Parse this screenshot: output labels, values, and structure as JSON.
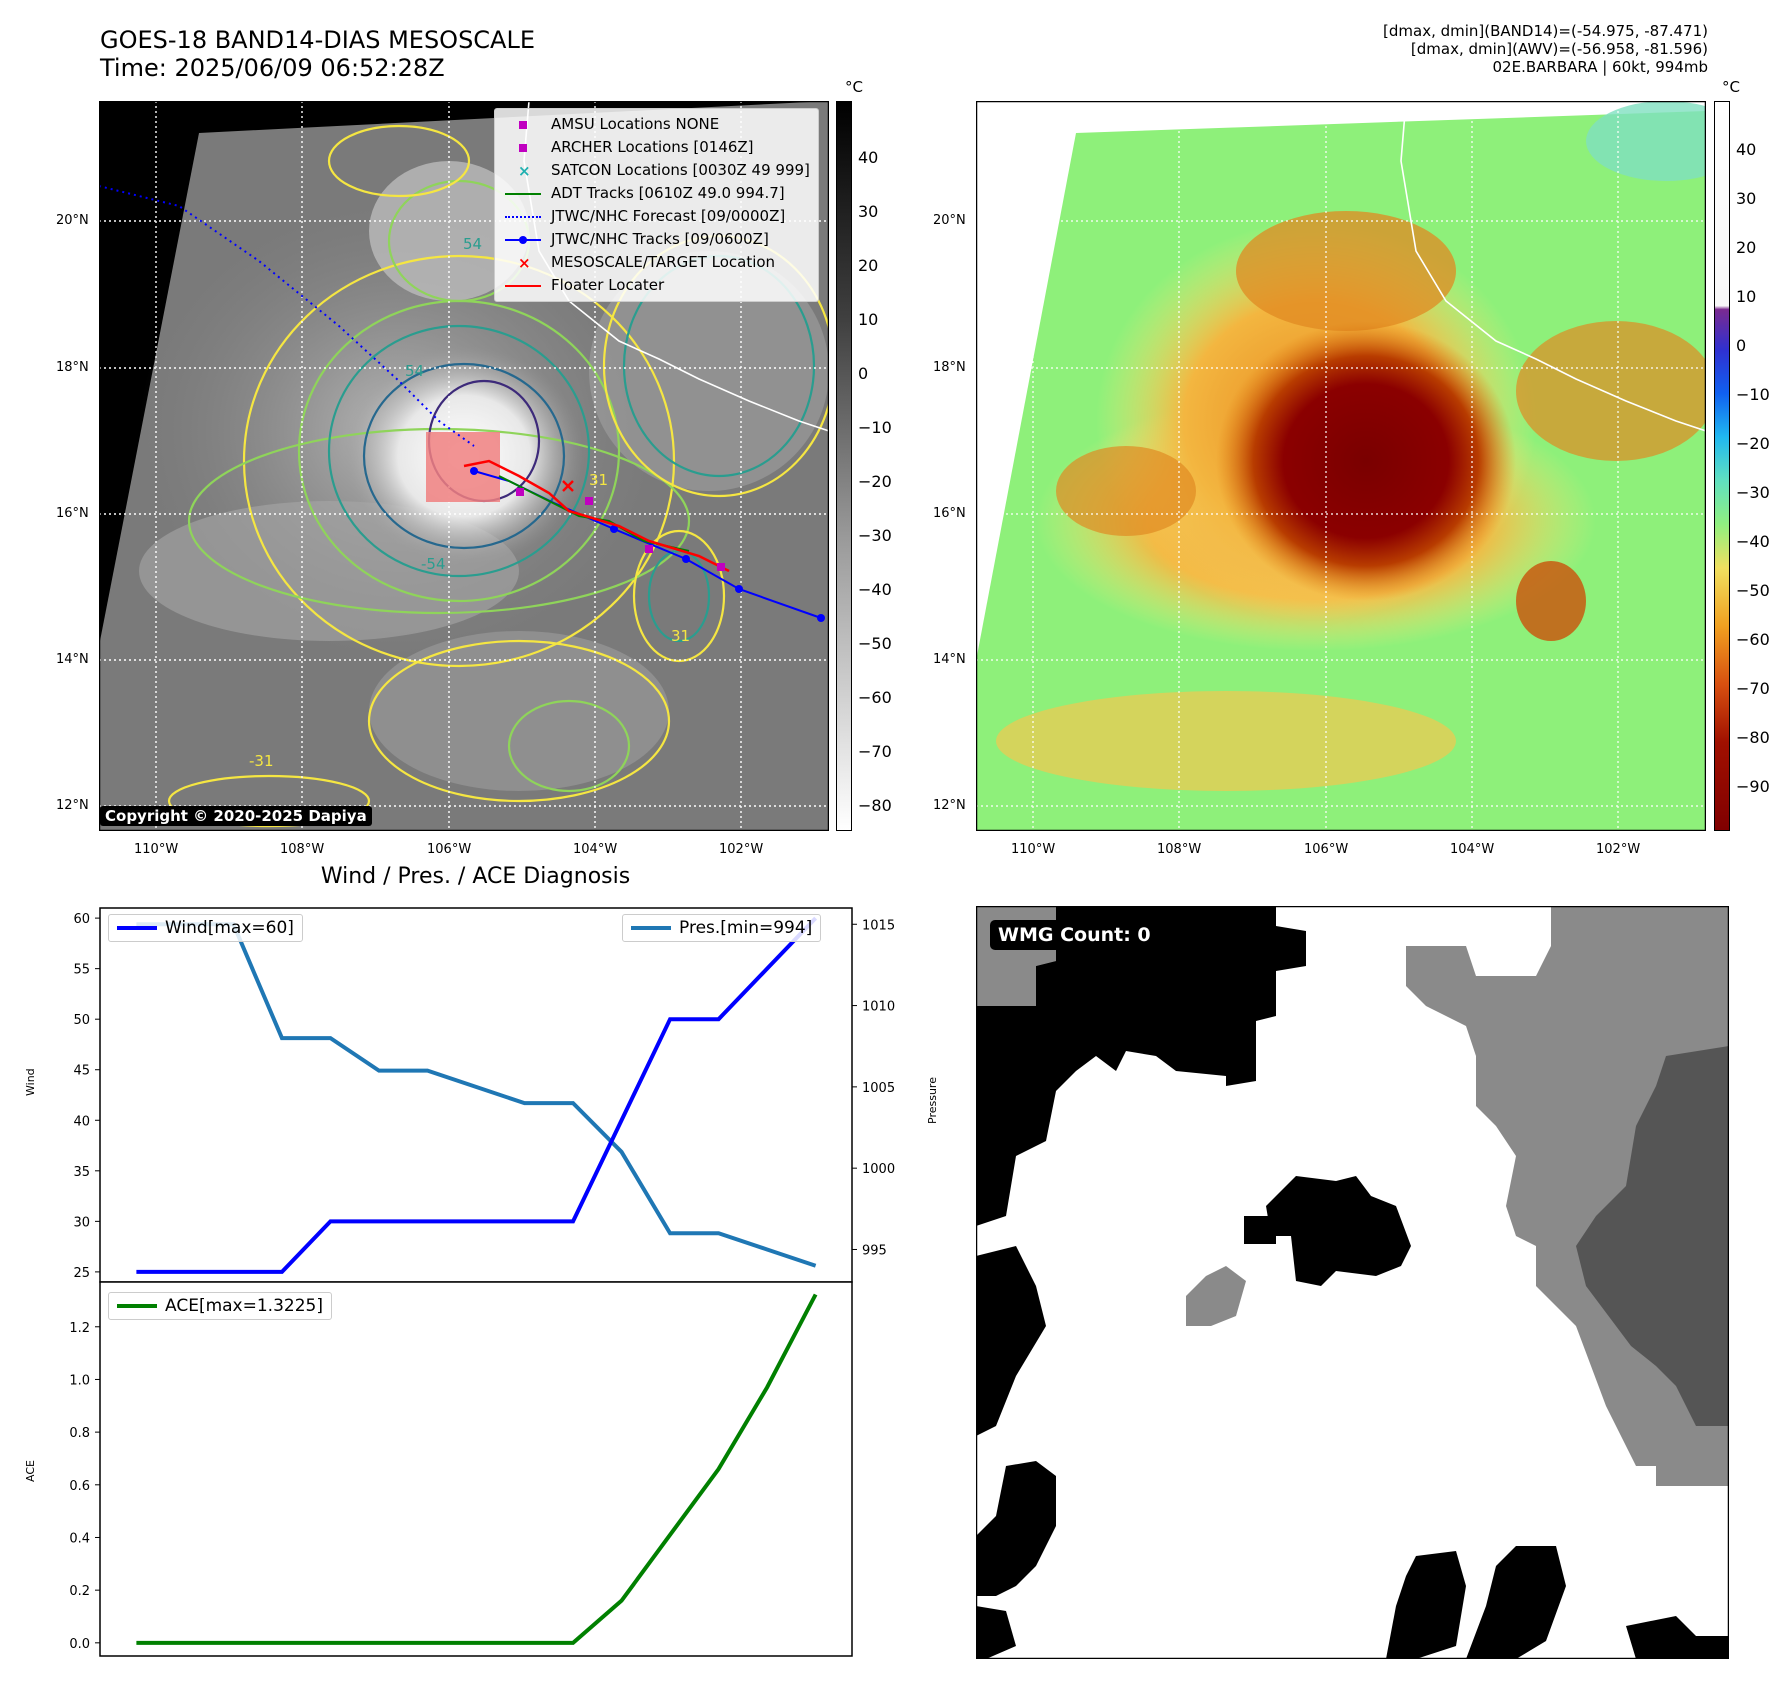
{
  "header": {
    "title_line1": "GOES-18 BAND14-DIAS MESOSCALE",
    "title_line2": "Time: 2025/06/09 06:52:28Z",
    "info_line1": "[dmax, dmin](BAND14)=(-54.975, -87.471)",
    "info_line2": "[dmax, dmin](AWV)=(-56.958, -81.596)",
    "info_line3": "02E.BARBARA | 60kt, 994mb"
  },
  "map": {
    "lat_labels": [
      "20°N",
      "18°N",
      "16°N",
      "14°N",
      "12°N"
    ],
    "lon_labels": [
      "110°W",
      "108°W",
      "106°W",
      "104°W",
      "102°W"
    ],
    "copyright": "Copyright © 2020-2025 Dapiya",
    "contour_labels": [
      "54",
      "54",
      "31",
      "31",
      "-54",
      "-31"
    ],
    "legend": [
      {
        "label": "AMSU Locations NONE",
        "color": "#c000c0",
        "marker": "square"
      },
      {
        "label": "ARCHER Locations [0146Z]",
        "color": "#c000c0",
        "marker": "square"
      },
      {
        "label": "SATCON Locations [0030Z 49 999]",
        "color": "#20b0b0",
        "marker": "x"
      },
      {
        "label": "ADT Tracks [0610Z 49.0 994.7]",
        "color": "#008000",
        "marker": "line"
      },
      {
        "label": "JTWC/NHC Forecast [09/0000Z]",
        "color": "#0000ff",
        "marker": "dotted"
      },
      {
        "label": "JTWC/NHC Tracks [09/0600Z]",
        "color": "#0000ff",
        "marker": "line-dot"
      },
      {
        "label": "MESOSCALE/TARGET Location",
        "color": "#ff0000",
        "marker": "x"
      },
      {
        "label": "Floater Locater",
        "color": "#ff0000",
        "marker": "line"
      }
    ]
  },
  "colorbar_gray": {
    "unit": "°C",
    "ticks": [
      "40",
      "30",
      "20",
      "10",
      "0",
      "−10",
      "−20",
      "−30",
      "−40",
      "−50",
      "−60",
      "−70",
      "−80"
    ]
  },
  "colorbar_color": {
    "unit": "°C",
    "ticks": [
      "40",
      "30",
      "20",
      "10",
      "0",
      "−10",
      "−20",
      "−30",
      "−40",
      "−50",
      "−60",
      "−70",
      "−80",
      "−90"
    ]
  },
  "diagnosis": {
    "title": "Wind / Pres. / ACE Diagnosis",
    "wind_label": "Wind",
    "pressure_label": "Pressure",
    "ace_label": "ACE",
    "legend_wind": "Wind[max=60]",
    "legend_pres": "Pres.[min=994]",
    "legend_ace": "ACE[max=1.3225]",
    "wind_color": "#0000ff",
    "pres_color": "#1f77b4",
    "ace_color": "#008000"
  },
  "wmg": {
    "badge": "WMG Count: 0"
  },
  "chart_data": [
    {
      "type": "line",
      "name": "wind-pressure",
      "x": [
        0,
        1,
        2,
        3,
        4,
        5,
        6,
        7,
        8,
        9,
        10,
        11,
        12,
        13,
        14
      ],
      "series": [
        {
          "name": "Wind[max=60]",
          "axis": "left",
          "values": [
            25,
            25,
            25,
            25,
            30,
            30,
            30,
            30,
            30,
            30,
            40,
            50,
            50,
            55,
            60
          ]
        },
        {
          "name": "Pres.[min=994]",
          "axis": "right",
          "values": [
            1015,
            1015,
            1015,
            1008,
            1008,
            1006,
            1006,
            1005,
            1004,
            1004,
            1001,
            996,
            996,
            995,
            994
          ]
        }
      ],
      "ylabel": "Wind",
      "ylim": [
        24,
        61
      ],
      "y2label": "Pressure",
      "y2lim": [
        993,
        1016
      ],
      "yticks": [
        25,
        30,
        35,
        40,
        45,
        50,
        55,
        60
      ],
      "y2ticks": [
        995,
        1000,
        1005,
        1010,
        1015
      ]
    },
    {
      "type": "line",
      "name": "ace",
      "x": [
        0,
        1,
        2,
        3,
        4,
        5,
        6,
        7,
        8,
        9,
        10,
        11,
        12,
        13,
        14
      ],
      "series": [
        {
          "name": "ACE[max=1.3225]",
          "values": [
            0,
            0,
            0,
            0,
            0,
            0,
            0,
            0,
            0,
            0,
            0.16,
            0.41,
            0.66,
            0.97,
            1.3225
          ]
        }
      ],
      "ylabel": "ACE",
      "ylim": [
        -0.05,
        1.37
      ],
      "yticks": [
        0.0,
        0.2,
        0.4,
        0.6,
        0.8,
        1.0,
        1.2
      ]
    }
  ]
}
